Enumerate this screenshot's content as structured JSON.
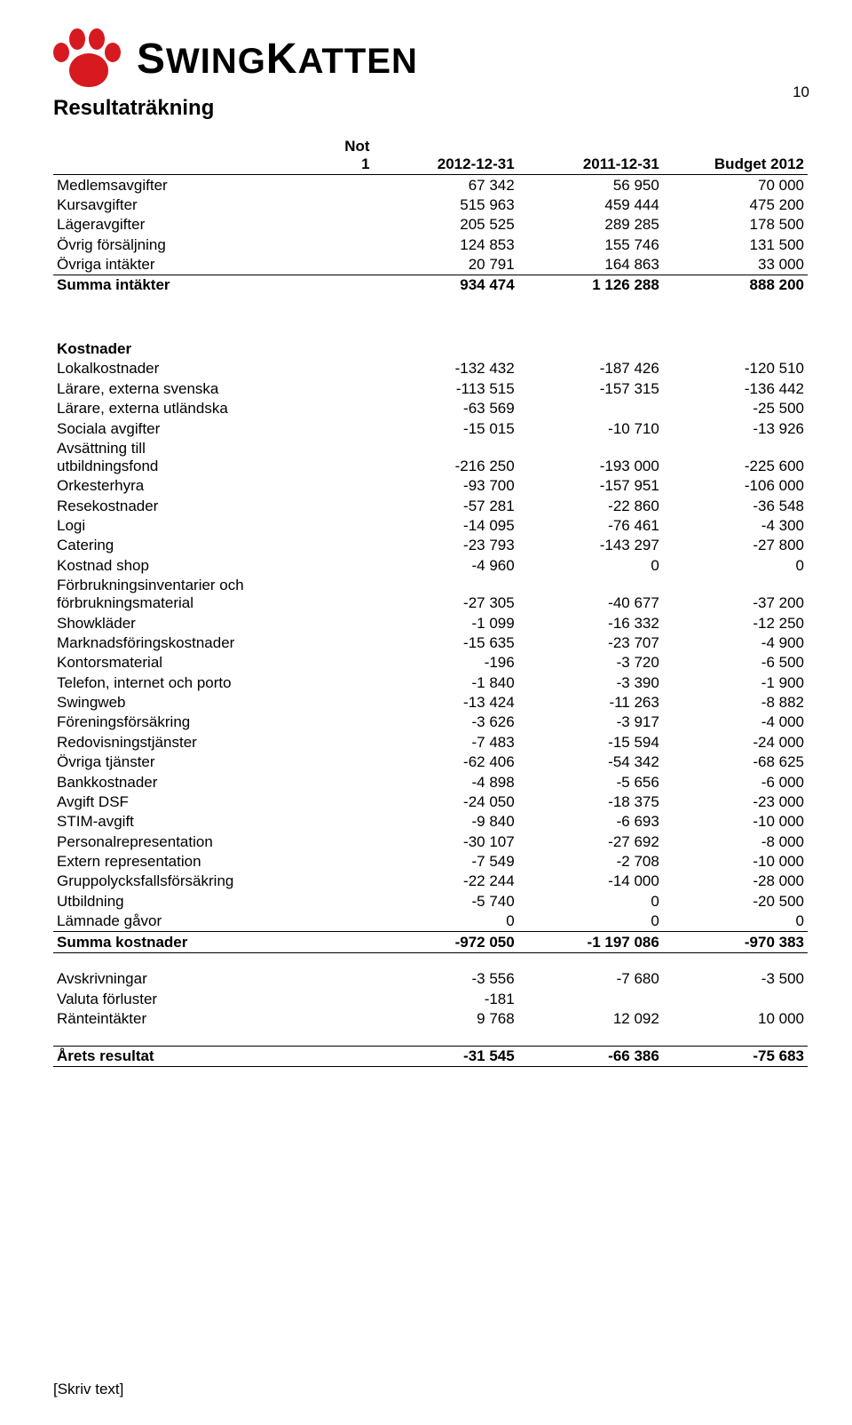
{
  "logo_text": "SWINGKATTEN",
  "page_number": "10",
  "title": "Resultaträkning",
  "header": {
    "c0": "Not\n1",
    "c1": "2012-12-31",
    "c2": "2011-12-31",
    "c3": "Budget 2012"
  },
  "income": [
    {
      "label": "Medlemsavgifter",
      "c1": "67 342",
      "c2": "56 950",
      "c3": "70 000"
    },
    {
      "label": "Kursavgifter",
      "c1": "515 963",
      "c2": "459 444",
      "c3": "475 200"
    },
    {
      "label": "Lägeravgifter",
      "c1": "205 525",
      "c2": "289 285",
      "c3": "178 500"
    },
    {
      "label": "Övrig försäljning",
      "c1": "124 853",
      "c2": "155 746",
      "c3": "131 500"
    },
    {
      "label": "Övriga intäkter",
      "c1": "20 791",
      "c2": "164 863",
      "c3": "33 000"
    }
  ],
  "income_sum": {
    "label": "Summa intäkter",
    "c1": "934 474",
    "c2": "1 126 288",
    "c3": "888 200"
  },
  "costs_header": "Kostnader",
  "costs": [
    {
      "label": "Lokalkostnader",
      "c1": "-132 432",
      "c2": "-187 426",
      "c3": "-120 510"
    },
    {
      "label": "Lärare, externa svenska",
      "c1": "-113 515",
      "c2": "-157 315",
      "c3": "-136 442"
    },
    {
      "label": "Lärare, externa utländska",
      "c1": "-63 569",
      "c2": "",
      "c3": "-25 500"
    },
    {
      "label": "Sociala avgifter",
      "c1": "-15 015",
      "c2": "-10 710",
      "c3": "-13 926"
    },
    {
      "label": "Avsättning till\nutbildningsfond",
      "c1": "-216 250",
      "c2": "-193 000",
      "c3": "-225 600"
    },
    {
      "label": "Orkesterhyra",
      "c1": "-93 700",
      "c2": "-157 951",
      "c3": "-106 000"
    },
    {
      "label": "Resekostnader",
      "c1": "-57 281",
      "c2": "-22 860",
      "c3": "-36 548"
    },
    {
      "label": "Logi",
      "c1": "-14 095",
      "c2": "-76 461",
      "c3": "-4 300"
    },
    {
      "label": "Catering",
      "c1": "-23 793",
      "c2": "-143 297",
      "c3": "-27 800"
    },
    {
      "label": "Kostnad shop",
      "c1": "-4 960",
      "c2": "0",
      "c3": "0"
    },
    {
      "label": "Förbrukningsinventarier och\nförbrukningsmaterial",
      "c1": "-27 305",
      "c2": "-40 677",
      "c3": "-37 200"
    },
    {
      "label": "Showkläder",
      "c1": "-1 099",
      "c2": "-16 332",
      "c3": "-12 250"
    },
    {
      "label": "Marknadsföringskostnader",
      "c1": "-15 635",
      "c2": "-23 707",
      "c3": "-4 900"
    },
    {
      "label": "Kontorsmaterial",
      "c1": "-196",
      "c2": "-3 720",
      "c3": "-6 500"
    },
    {
      "label": "Telefon, internet och porto",
      "c1": "-1 840",
      "c2": "-3 390",
      "c3": "-1 900"
    },
    {
      "label": "Swingweb",
      "c1": "-13 424",
      "c2": "-11 263",
      "c3": "-8 882"
    },
    {
      "label": "Föreningsförsäkring",
      "c1": "-3 626",
      "c2": "-3 917",
      "c3": "-4 000"
    },
    {
      "label": "Redovisningstjänster",
      "c1": "-7 483",
      "c2": "-15 594",
      "c3": "-24 000"
    },
    {
      "label": "Övriga tjänster",
      "c1": "-62 406",
      "c2": "-54 342",
      "c3": "-68 625"
    },
    {
      "label": "Bankkostnader",
      "c1": "-4 898",
      "c2": "-5 656",
      "c3": "-6 000"
    },
    {
      "label": "Avgift DSF",
      "c1": "-24 050",
      "c2": "-18 375",
      "c3": "-23 000"
    },
    {
      "label": "STIM-avgift",
      "c1": "-9 840",
      "c2": "-6 693",
      "c3": "-10 000"
    },
    {
      "label": "Personalrepresentation",
      "c1": "-30 107",
      "c2": "-27 692",
      "c3": "-8 000"
    },
    {
      "label": "Extern representation",
      "c1": "-7 549",
      "c2": "-2 708",
      "c3": "-10 000"
    },
    {
      "label": "Gruppolycksfallsförsäkring",
      "c1": "-22 244",
      "c2": "-14 000",
      "c3": "-28 000"
    },
    {
      "label": "Utbildning",
      "c1": "-5 740",
      "c2": "0",
      "c3": "-20 500"
    },
    {
      "label": "Lämnade gåvor",
      "c1": "0",
      "c2": "0",
      "c3": "0"
    }
  ],
  "costs_sum": {
    "label": "Summa kostnader",
    "c1": "-972 050",
    "c2": "-1 197 086",
    "c3": "-970 383"
  },
  "other": [
    {
      "label": "Avskrivningar",
      "c1": "-3 556",
      "c2": "-7 680",
      "c3": "-3 500"
    },
    {
      "label": "Valuta förluster",
      "c1": "-181",
      "c2": "",
      "c3": ""
    },
    {
      "label": "Ränteintäkter",
      "c1": "9 768",
      "c2": "12 092",
      "c3": "10 000"
    }
  ],
  "result": {
    "label": "Årets resultat",
    "c1": "-31 545",
    "c2": "-66 386",
    "c3": "-75 683"
  },
  "footer": "[Skriv text]",
  "colors": {
    "accent": "#d71920",
    "text": "#000000",
    "background": "#ffffff"
  }
}
